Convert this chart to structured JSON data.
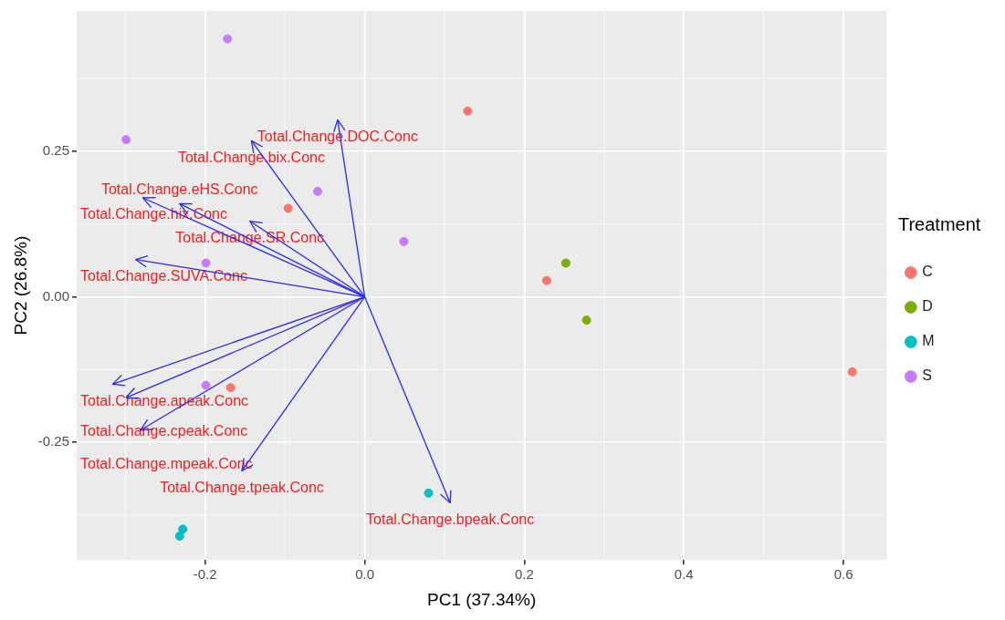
{
  "chart_data": {
    "type": "scatter",
    "xlabel": "PC1 (37.34%)",
    "ylabel": "PC2 (26.8%)",
    "legend_title": "Treatment",
    "legend": "right",
    "grid": true,
    "xlim": [
      -0.361,
      0.654
    ],
    "ylim": [
      -0.452,
      0.491
    ],
    "xticks": [
      {
        "value": -0.2,
        "label": "-0.2"
      },
      {
        "value": 0,
        "label": "0.0"
      },
      {
        "value": 0.2,
        "label": "0.2"
      },
      {
        "value": 0.4,
        "label": "0.4"
      },
      {
        "value": 0.6,
        "label": "0.6"
      }
    ],
    "yticks": [
      {
        "value": -0.25,
        "label": "-0.25"
      },
      {
        "value": 0,
        "label": "0.00"
      },
      {
        "value": 0.25,
        "label": "0.25"
      }
    ],
    "series": [
      {
        "name": "C",
        "marker": "circle",
        "color": "#f8766d",
        "x": [
          0.129,
          -0.096,
          0.228,
          -0.168,
          0.611
        ],
        "values": [
          0.319,
          0.152,
          0.028,
          -0.156,
          -0.129
        ]
      },
      {
        "name": "D",
        "marker": "circle",
        "color": "#7cae00",
        "x": [
          0.252,
          0.278
        ],
        "values": [
          0.058,
          -0.04
        ]
      },
      {
        "name": "M",
        "marker": "circle",
        "color": "#00bfc4",
        "x": [
          0.08,
          -0.228,
          -0.232
        ],
        "values": [
          -0.337,
          -0.399,
          -0.411
        ]
      },
      {
        "name": "S",
        "marker": "circle",
        "color": "#c77cff",
        "x": [
          -0.172,
          -0.299,
          -0.059,
          0.049,
          -0.199,
          -0.199
        ],
        "values": [
          0.443,
          0.27,
          0.181,
          0.095,
          0.058,
          -0.152
        ]
      },
      {
        "type": "line",
        "color": "#2a2aee",
        "x": [
          0,
          -0.034
        ],
        "values": [
          0,
          0.304
        ]
      },
      {
        "type": "line",
        "color": "#2a2aee",
        "x": [
          0,
          -0.142
        ],
        "values": [
          0,
          0.268
        ]
      },
      {
        "type": "line",
        "color": "#2a2aee",
        "x": [
          0,
          -0.278
        ],
        "values": [
          0,
          0.17
        ]
      },
      {
        "type": "line",
        "color": "#2a2aee",
        "x": [
          0,
          -0.232
        ],
        "values": [
          0,
          0.16
        ]
      },
      {
        "type": "line",
        "color": "#2a2aee",
        "x": [
          0,
          -0.144
        ],
        "values": [
          0,
          0.13
        ]
      },
      {
        "type": "line",
        "color": "#2a2aee",
        "x": [
          0,
          -0.287
        ],
        "values": [
          0,
          0.064
        ]
      },
      {
        "type": "line",
        "color": "#2a2aee",
        "x": [
          0,
          -0.316
        ],
        "values": [
          0,
          -0.15
        ]
      },
      {
        "type": "line",
        "color": "#2a2aee",
        "x": [
          0,
          -0.299
        ],
        "values": [
          0,
          -0.173
        ]
      },
      {
        "type": "line",
        "color": "#2a2aee",
        "x": [
          0,
          -0.281
        ],
        "values": [
          0,
          -0.229
        ]
      },
      {
        "type": "line",
        "color": "#2a2aee",
        "x": [
          0,
          -0.154
        ],
        "values": [
          0,
          -0.299
        ]
      },
      {
        "type": "line",
        "color": "#2a2aee",
        "x": [
          0,
          0.107
        ],
        "values": [
          0,
          -0.354
        ]
      }
    ],
    "annotations": [
      {
        "text": "Total.Change.DOC.Conc",
        "x": -0.034,
        "y": 0.304
      },
      {
        "text": "Total.Change.bix.Conc",
        "x": -0.142,
        "y": 0.268
      },
      {
        "text": "Total.Change.hix.Conc",
        "x": -0.278,
        "y": 0.17
      },
      {
        "text": "Total.Change.eHS.Conc",
        "x": -0.232,
        "y": 0.16
      },
      {
        "text": "Total.Change.SR.Conc",
        "x": -0.144,
        "y": 0.13
      },
      {
        "text": "Total.Change.SUVA.Conc",
        "x": -0.287,
        "y": 0.064
      },
      {
        "text": "Total.Change.apeak.Conc",
        "x": -0.316,
        "y": -0.15
      },
      {
        "text": "Total.Change.cpeak.Conc",
        "x": -0.299,
        "y": -0.173
      },
      {
        "text": "Total.Change.mpeak.Conc",
        "x": -0.281,
        "y": -0.229
      },
      {
        "text": "Total.Change.tpeak.Conc",
        "x": -0.154,
        "y": -0.299
      },
      {
        "text": "Total.Change.bpeak.Conc",
        "x": 0.107,
        "y": -0.354
      }
    ]
  }
}
